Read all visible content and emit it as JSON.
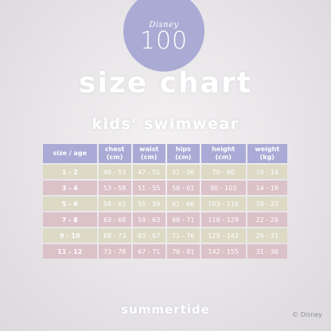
{
  "badge": {
    "brand": "Disney",
    "number": "100"
  },
  "title": "size chart",
  "subtitle": "kids' swimwear",
  "colors": {
    "header": "#a9abd6",
    "row_colors": [
      "#dcd9c5",
      "#dbc1c8",
      "#dcd9c5",
      "#dbc1c8",
      "#dcd9c5",
      "#dbc1c8"
    ]
  },
  "table": {
    "headers": [
      [
        "size / age",
        ""
      ],
      [
        "chest",
        "(cm)"
      ],
      [
        "waist",
        "(cm)"
      ],
      [
        "hips",
        "(cm)"
      ],
      [
        "height",
        "(cm)"
      ],
      [
        "weight",
        "(kg)"
      ]
    ],
    "rows": [
      [
        "1 - 2",
        "48 - 53",
        "47 - 51",
        "51 - 56",
        "70 - 90",
        "10 - 14"
      ],
      [
        "3 - 4",
        "53 - 58",
        "51 - 55",
        "56 - 61",
        "90 - 103",
        "14 - 18"
      ],
      [
        "5 - 6",
        "58 - 63",
        "55 - 59",
        "61 - 66",
        "103 - 116",
        "18 - 22"
      ],
      [
        "7 - 8",
        "63 - 68",
        "59 - 63",
        "66 - 71",
        "116 - 129",
        "22 - 26"
      ],
      [
        "9 - 10",
        "68 - 73",
        "63 - 67",
        "71 - 76",
        "129 - 142",
        "26 - 31"
      ],
      [
        "11 - 12",
        "73 - 78",
        "67 - 71",
        "76 - 81",
        "142 - 155",
        "31 - 36"
      ]
    ]
  },
  "brand": "summertide",
  "copyright": "© Disney"
}
